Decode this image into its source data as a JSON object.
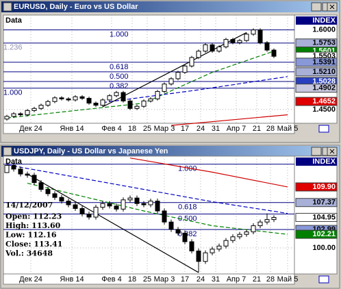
{
  "windows": [
    {
      "title": "EURUSD, Daily - Euro vs US Dollar",
      "data_label": "Data",
      "index_label": "INDEX",
      "chart": {
        "type": "candlestick",
        "xlim": [
          -0.5,
          42
        ],
        "ylim": [
          1.424,
          1.628
        ],
        "yticks": [
          {
            "value": 1.6,
            "label": "1.6000"
          },
          {
            "value": 1.45,
            "label": "1.4500"
          }
        ],
        "dates": [
          {
            "value": 3.5,
            "label": "Дек 24"
          },
          {
            "value": 9.5,
            "label": "Янв 14"
          },
          {
            "value": 15.3,
            "label": "Фев 4"
          },
          {
            "value": 18.3,
            "label": "18"
          },
          {
            "value": 20.5,
            "label": "25"
          },
          {
            "value": 23,
            "label": "Мар 3"
          },
          {
            "value": 26,
            "label": "17"
          },
          {
            "value": 28.3,
            "label": "24"
          },
          {
            "value": 30.5,
            "label": "31"
          },
          {
            "value": 33.5,
            "label": "Апр 7"
          },
          {
            "value": 36.5,
            "label": "21"
          },
          {
            "value": 38.5,
            "label": "28"
          },
          {
            "value": 41,
            "label": "Май 5"
          }
        ],
        "ohlc": [
          [
            1.432,
            1.44,
            1.429,
            1.437
          ],
          [
            1.437,
            1.445,
            1.434,
            1.442
          ],
          [
            1.442,
            1.445,
            1.437,
            1.44
          ],
          [
            1.44,
            1.451,
            1.437,
            1.448
          ],
          [
            1.448,
            1.455,
            1.445,
            1.452
          ],
          [
            1.452,
            1.461,
            1.449,
            1.458
          ],
          [
            1.458,
            1.468,
            1.455,
            1.465
          ],
          [
            1.465,
            1.475,
            1.462,
            1.472
          ],
          [
            1.472,
            1.475,
            1.467,
            1.47
          ],
          [
            1.47,
            1.473,
            1.465,
            1.468
          ],
          [
            1.468,
            1.477,
            1.465,
            1.474
          ],
          [
            1.474,
            1.477,
            1.468,
            1.471
          ],
          [
            1.471,
            1.474,
            1.459,
            1.462
          ],
          [
            1.462,
            1.465,
            1.455,
            1.458
          ],
          [
            1.458,
            1.471,
            1.455,
            1.468
          ],
          [
            1.468,
            1.479,
            1.465,
            1.476
          ],
          [
            1.476,
            1.485,
            1.473,
            1.482
          ],
          [
            1.482,
            1.485,
            1.463,
            1.466
          ],
          [
            1.466,
            1.469,
            1.449,
            1.452
          ],
          [
            1.452,
            1.459,
            1.449,
            1.456
          ],
          [
            1.456,
            1.469,
            1.453,
            1.466
          ],
          [
            1.466,
            1.473,
            1.463,
            1.47
          ],
          [
            1.47,
            1.487,
            1.467,
            1.484
          ],
          [
            1.484,
            1.501,
            1.481,
            1.498
          ],
          [
            1.498,
            1.511,
            1.495,
            1.508
          ],
          [
            1.508,
            1.523,
            1.505,
            1.52
          ],
          [
            1.52,
            1.535,
            1.517,
            1.532
          ],
          [
            1.532,
            1.551,
            1.529,
            1.548
          ],
          [
            1.548,
            1.563,
            1.545,
            1.56
          ],
          [
            1.56,
            1.575,
            1.557,
            1.572
          ],
          [
            1.572,
            1.575,
            1.557,
            1.56
          ],
          [
            1.56,
            1.571,
            1.557,
            1.568
          ],
          [
            1.568,
            1.585,
            1.565,
            1.582
          ],
          [
            1.582,
            1.585,
            1.573,
            1.576
          ],
          [
            1.576,
            1.583,
            1.573,
            1.58
          ],
          [
            1.58,
            1.595,
            1.577,
            1.592
          ],
          [
            1.592,
            1.603,
            1.589,
            1.6
          ],
          [
            1.6,
            1.603,
            1.573,
            1.576
          ],
          [
            1.576,
            1.579,
            1.559,
            1.562
          ],
          [
            1.562,
            1.565,
            1.547,
            1.5503
          ]
        ],
        "lines": [
          {
            "color": "#008000",
            "dash": true,
            "x": [
              0,
              20,
              30,
              39
            ],
            "values": [
              1.434,
              1.462,
              1.52,
              1.56
            ]
          },
          {
            "color": "#0000c0",
            "dash": true,
            "x": [
              14,
              28,
              41
            ],
            "values": [
              1.463,
              1.487,
              1.512
            ]
          },
          {
            "color": "#000000",
            "dash": false,
            "x": [
              14,
              35
            ],
            "values": [
              1.455,
              1.595
            ]
          },
          {
            "color": "#d00000",
            "dash": false,
            "x": [
              24,
              41
            ],
            "values": [
              1.42,
              1.44
            ]
          }
        ],
        "levels": [
          {
            "label": "1.000",
            "value": 1.6
          },
          {
            "label": "1.236",
            "value": 1.5753
          },
          {
            "label": "0.618",
            "value": 1.5391
          },
          {
            "label": "0.500",
            "value": 1.521
          },
          {
            "label": "0.382",
            "value": 1.5028
          },
          {
            "label": "1.000",
            "value": 1.4902
          }
        ],
        "price_boxes": [
          {
            "label": "1.5753",
            "value": 1.5753,
            "color": "#a8b0d8"
          },
          {
            "label": "1.5601",
            "value": 1.5601,
            "color": "#008000"
          },
          {
            "label": "1.5503",
            "value": 1.5503,
            "color": "#ffffff"
          },
          {
            "label": "1.5391",
            "value": 1.5391,
            "color": "#8898d8"
          },
          {
            "label": "1.5210",
            "value": 1.521,
            "color": "#a8b0d8"
          },
          {
            "label": "1.5028",
            "value": 1.5028,
            "color": "#2840c0"
          },
          {
            "label": "1.4902",
            "value": 1.4902,
            "color": "#c8c8e0"
          },
          {
            "label": "1.4652",
            "value": 1.4652,
            "color": "#e00000"
          }
        ]
      }
    },
    {
      "title": "USDJPY, Daily - US Dollar vs Japanese Yen",
      "data_label": "Data",
      "index_label": "INDEX",
      "info": [
        "14/12/2007",
        "Open: 112.23",
        "High: 113.60",
        "Low: 112.16",
        "Close: 113.41",
        "Vol.: 34648"
      ],
      "chart": {
        "type": "candlestick",
        "xlim": [
          -0.5,
          42
        ],
        "ylim": [
          95.77,
          114.9
        ],
        "yticks": [
          {
            "value": 100,
            "label": "100.00"
          }
        ],
        "dates": [
          {
            "value": 3.5,
            "label": "Дек 24"
          },
          {
            "value": 9.5,
            "label": "Янв 14"
          },
          {
            "value": 15.3,
            "label": "Фев 4"
          },
          {
            "value": 18.3,
            "label": "18"
          },
          {
            "value": 20.5,
            "label": "25"
          },
          {
            "value": 23,
            "label": "Мар 3"
          },
          {
            "value": 26,
            "label": "17"
          },
          {
            "value": 28.3,
            "label": "24"
          },
          {
            "value": 30.5,
            "label": "31"
          },
          {
            "value": 33.5,
            "label": "Апр 7"
          },
          {
            "value": 36.5,
            "label": "21"
          },
          {
            "value": 38.5,
            "label": "28"
          },
          {
            "value": 41,
            "label": "Май 5"
          }
        ],
        "ohlc": [
          [
            112.23,
            113.6,
            112.16,
            113.41
          ],
          [
            113.41,
            113.8,
            112.4,
            112.8
          ],
          [
            112.8,
            113.2,
            111.6,
            112.0
          ],
          [
            112.0,
            112.4,
            111.4,
            111.8
          ],
          [
            111.8,
            112.2,
            110.2,
            110.6
          ],
          [
            110.6,
            111.0,
            109.1,
            109.5
          ],
          [
            109.5,
            109.9,
            108.4,
            108.8
          ],
          [
            108.8,
            109.2,
            107.8,
            108.2
          ],
          [
            108.2,
            108.6,
            107.2,
            107.6
          ],
          [
            107.6,
            108.0,
            106.6,
            107.0
          ],
          [
            107.0,
            107.4,
            106.0,
            106.4
          ],
          [
            106.4,
            106.8,
            105.1,
            105.5
          ],
          [
            105.5,
            105.9,
            104.6,
            105.0
          ],
          [
            105.0,
            107.0,
            104.6,
            106.6
          ],
          [
            106.6,
            107.6,
            106.2,
            107.2
          ],
          [
            107.2,
            107.6,
            106.4,
            106.8
          ],
          [
            106.8,
            107.2,
            105.9,
            106.3
          ],
          [
            106.3,
            108.2,
            105.9,
            107.8
          ],
          [
            107.8,
            108.5,
            107.4,
            108.1
          ],
          [
            108.1,
            108.5,
            106.8,
            107.2
          ],
          [
            107.2,
            107.6,
            106.6,
            107.0
          ],
          [
            107.0,
            108.0,
            106.6,
            107.6
          ],
          [
            107.6,
            108.0,
            105.6,
            106.0
          ],
          [
            106.0,
            106.4,
            103.8,
            104.2
          ],
          [
            104.2,
            104.6,
            102.6,
            103.0
          ],
          [
            103.0,
            103.4,
            102.0,
            102.4
          ],
          [
            102.4,
            102.8,
            100.6,
            101.0
          ],
          [
            101.0,
            101.4,
            99.1,
            99.5
          ],
          [
            99.5,
            99.9,
            96.0,
            97.8
          ],
          [
            97.8,
            99.6,
            97.4,
            99.2
          ],
          [
            99.2,
            100.2,
            98.8,
            99.8
          ],
          [
            99.8,
            100.7,
            99.4,
            100.3
          ],
          [
            100.3,
            101.6,
            99.9,
            101.2
          ],
          [
            101.2,
            102.2,
            100.8,
            101.8
          ],
          [
            101.8,
            102.6,
            101.4,
            102.2
          ],
          [
            102.2,
            103.0,
            101.8,
            102.6
          ],
          [
            102.6,
            104.0,
            102.2,
            103.6
          ],
          [
            103.6,
            104.6,
            103.2,
            104.2
          ],
          [
            104.2,
            105.6,
            103.8,
            104.6
          ],
          [
            104.6,
            105.3,
            104.2,
            104.95
          ]
        ],
        "lines": [
          {
            "color": "#0000c0",
            "dash": true,
            "x": [
              0,
              15,
              30,
              41
            ],
            "values": [
              113.5,
              110.5,
              107.5,
              105.6
            ]
          },
          {
            "color": "#d00000",
            "dash": false,
            "x": [
              18,
              30,
              41
            ],
            "values": [
              114.6,
              112.3,
              109.9
            ]
          },
          {
            "color": "#008000",
            "dash": true,
            "x": [
              3,
              20,
              30,
              41
            ],
            "values": [
              110.5,
              106.0,
              103.6,
              102.2
            ]
          },
          {
            "color": "#000000",
            "dash": false,
            "x": [
              3,
              28
            ],
            "values": [
              112.0,
              96.0
            ]
          }
        ],
        "levels": [
          {
            "label": "1.000",
            "value": 113.6
          },
          {
            "label": "0.618",
            "value": 107.37
          },
          {
            "label": "0.500",
            "value": 105.5
          },
          {
            "label": "0.382",
            "value": 102.99
          }
        ],
        "price_boxes": [
          {
            "label": "109.90",
            "value": 109.9,
            "color": "#e00000"
          },
          {
            "label": "107.37",
            "value": 107.37,
            "color": "#a8b0d8"
          },
          {
            "label": "104.95",
            "value": 104.95,
            "color": "#ffffff"
          },
          {
            "label": "102.99",
            "value": 102.99,
            "color": "#8898d8"
          },
          {
            "label": "102.21",
            "value": 102.21,
            "color": "#008000"
          }
        ]
      }
    }
  ]
}
